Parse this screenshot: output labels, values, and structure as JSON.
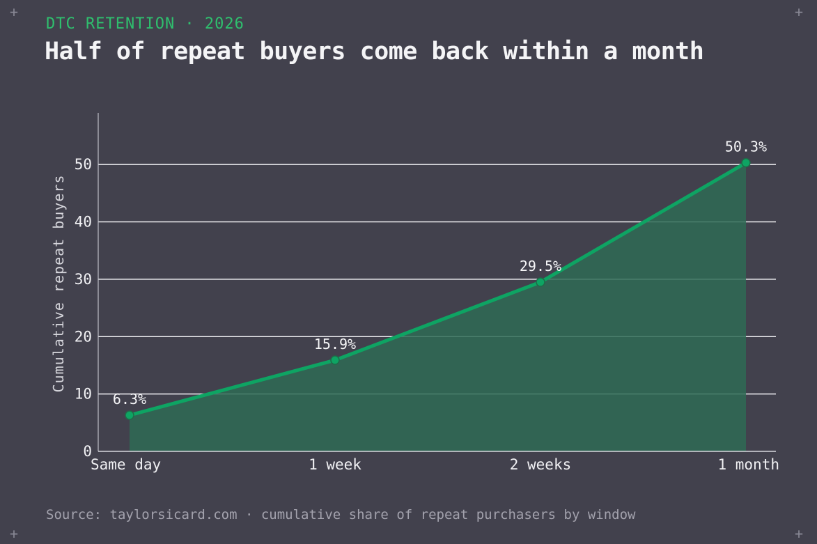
{
  "header": {
    "eyebrow": "DTC RETENTION · 2026",
    "title": "Half of repeat buyers come back within a month"
  },
  "footer": {
    "source": "Source: taylorsicard.com · cumulative share of repeat purchasers by window"
  },
  "decor": {
    "corner_glyph": "+"
  },
  "colors": {
    "background": "#42414d",
    "accent": "#0ea463",
    "area_fill": "#2e6b55",
    "grid": "#f0f0f3",
    "eyebrow": "#2fbf6e"
  },
  "chart_data": {
    "type": "area",
    "categories": [
      "Same day",
      "1 week",
      "2 weeks",
      "1 month"
    ],
    "series": [
      {
        "values": [
          6.3,
          15.9,
          29.5,
          50.3
        ],
        "labels": [
          "6.3%",
          "15.9%",
          "29.5%",
          "50.3%"
        ]
      }
    ],
    "title": "Half of repeat buyers come back within a month",
    "subtitle": "DTC RETENTION · 2026",
    "xlabel": "",
    "ylabel": "Cumulative repeat buyers",
    "ylim": [
      0,
      59
    ],
    "yticks": [
      0,
      10,
      20,
      30,
      40,
      50
    ],
    "grid": true,
    "legend": "none"
  }
}
